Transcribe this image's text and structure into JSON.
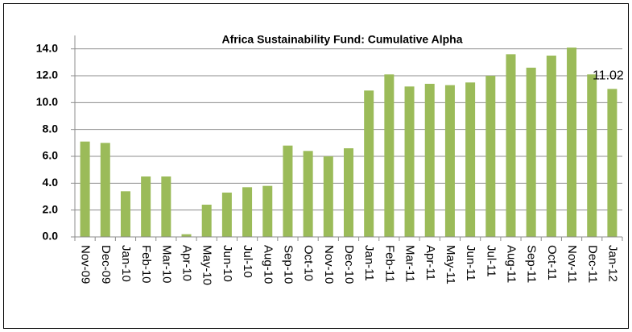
{
  "chart_data": {
    "type": "bar",
    "title": "Africa Sustainability Fund: Cumulative Alpha",
    "categories": [
      "Nov-09",
      "Dec-09",
      "Jan-10",
      "Feb-10",
      "Mar-10",
      "Apr-10",
      "May-10",
      "Jun-10",
      "Jul-10",
      "Aug-10",
      "Sep-10",
      "Oct-10",
      "Nov-10",
      "Dec-10",
      "Jan-11",
      "Feb-11",
      "Mar-11",
      "Apr-11",
      "May-11",
      "Jun-11",
      "Jul-11",
      "Aug-11",
      "Sep-11",
      "Oct-11",
      "Nov-11",
      "Dec-11",
      "Jan-12"
    ],
    "values": [
      7.1,
      7.0,
      3.4,
      4.5,
      4.5,
      0.2,
      2.4,
      3.3,
      3.7,
      3.8,
      6.8,
      6.4,
      6.0,
      6.6,
      10.9,
      12.1,
      11.2,
      11.4,
      11.3,
      11.5,
      12.0,
      13.6,
      12.6,
      13.5,
      14.1,
      12.1,
      11.02
    ],
    "value_labels": [
      null,
      null,
      null,
      null,
      null,
      null,
      null,
      null,
      null,
      null,
      null,
      null,
      null,
      null,
      null,
      null,
      null,
      null,
      null,
      null,
      null,
      null,
      null,
      null,
      null,
      null,
      "11.02"
    ],
    "color": "#9bbb59",
    "ylim": [
      0,
      15
    ],
    "yticks": [
      {
        "value": 0,
        "label": "0.0"
      },
      {
        "value": 2,
        "label": "2.0"
      },
      {
        "value": 4,
        "label": "4.0"
      },
      {
        "value": 6,
        "label": "6.0"
      },
      {
        "value": 8,
        "label": "8.0"
      },
      {
        "value": 10,
        "label": "10.0"
      },
      {
        "value": 12,
        "label": "12.0"
      },
      {
        "value": 14,
        "label": "14.0"
      }
    ],
    "grid": true
  }
}
